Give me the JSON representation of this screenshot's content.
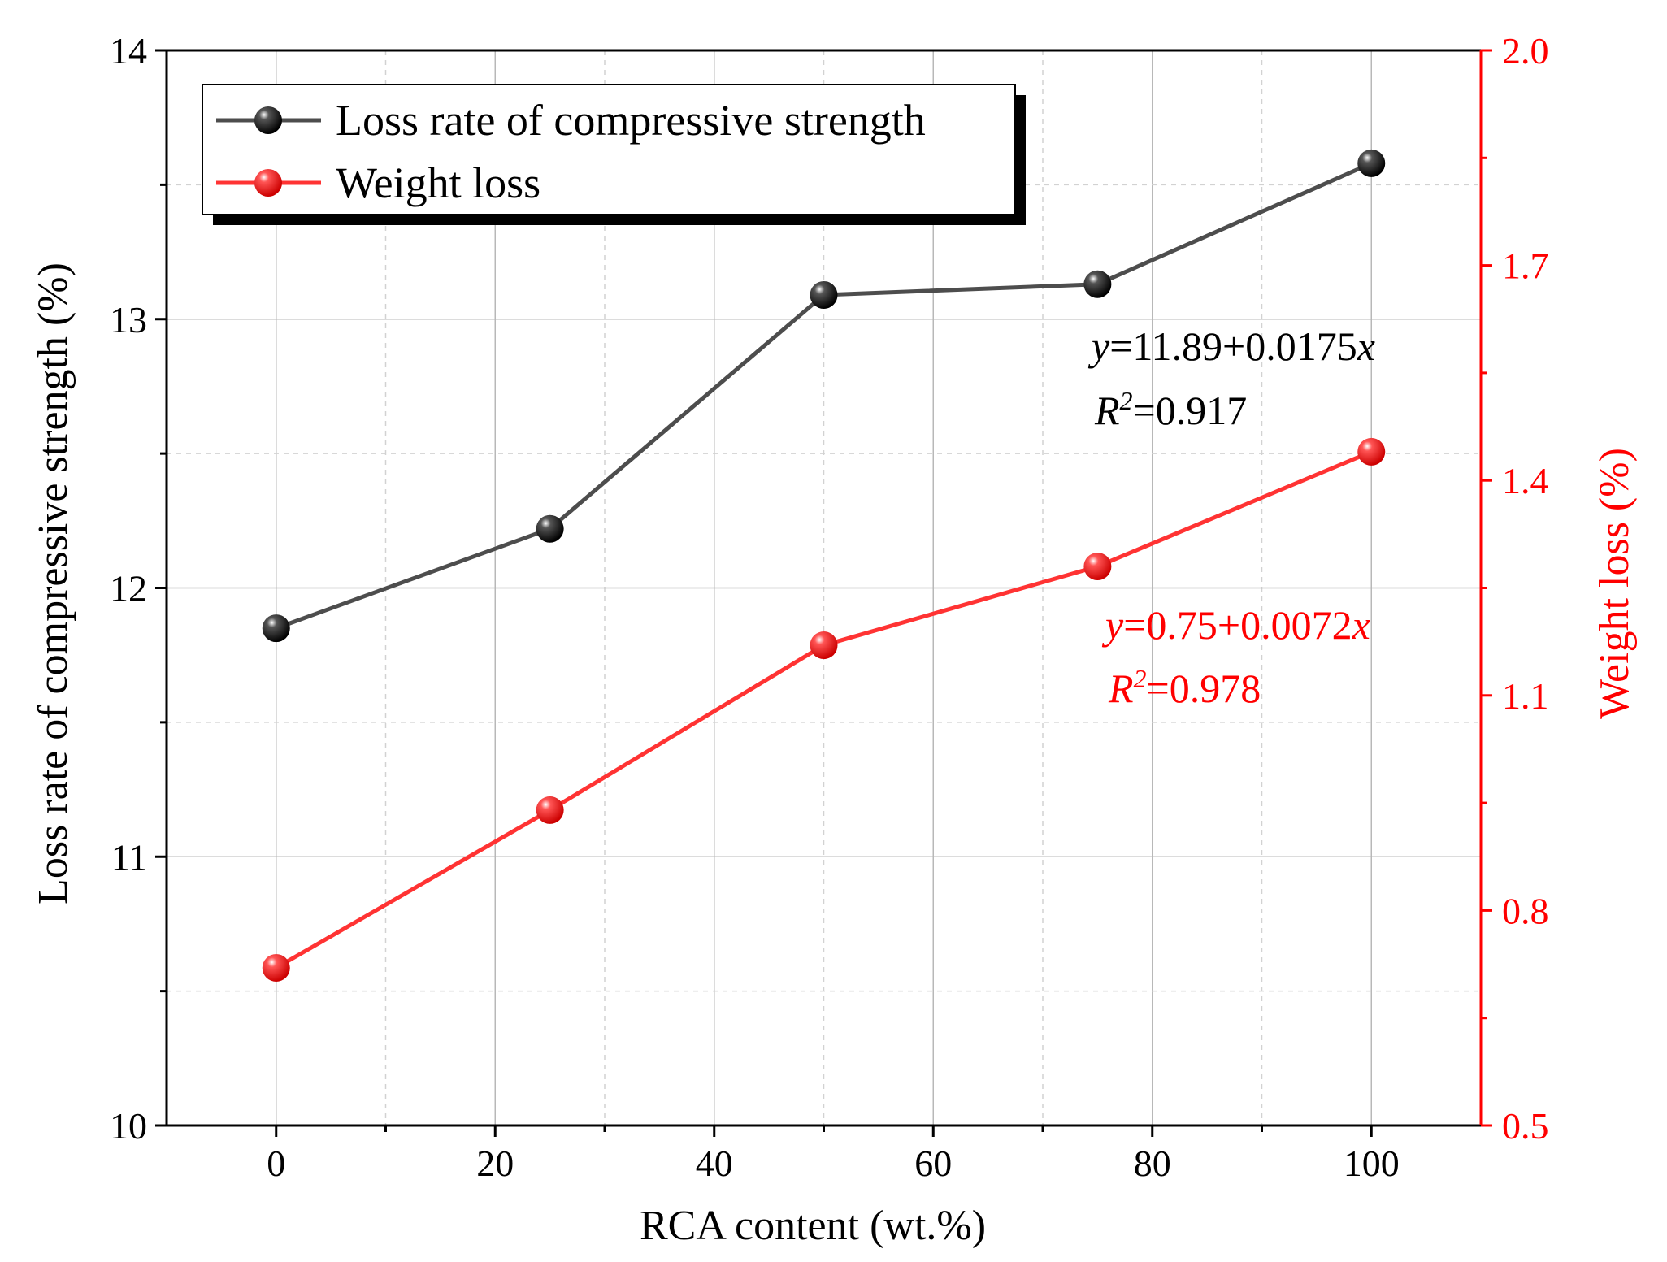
{
  "chart_data": {
    "type": "line",
    "x": [
      0,
      25,
      50,
      75,
      100
    ],
    "xlabel": "RCA content (wt.%)",
    "xlim": [
      -10,
      110
    ],
    "xticks": [
      0,
      20,
      40,
      60,
      80,
      100
    ],
    "xtick_labels": [
      "0",
      "20",
      "40",
      "60",
      "80",
      "100"
    ],
    "y_left": {
      "label": "Loss rate of compressive strength (%)",
      "lim": [
        10,
        14
      ],
      "ticks": [
        10,
        11,
        12,
        13,
        14
      ],
      "tick_labels": [
        "10",
        "11",
        "12",
        "13",
        "14"
      ],
      "color": "#000000"
    },
    "y_right": {
      "label": "Weight loss (%)",
      "lim": [
        0.5,
        2.0
      ],
      "ticks": [
        0.5,
        0.8,
        1.1,
        1.4,
        1.7,
        2.0
      ],
      "tick_labels": [
        "0.5",
        "0.8",
        "1.1",
        "1.4",
        "1.7",
        "2.0"
      ],
      "color": "#ff0000"
    },
    "series": [
      {
        "name": "Loss rate of compressive strength",
        "axis": "left",
        "color": "#4d4d4d",
        "marker_color": "#000000",
        "values": [
          11.85,
          12.22,
          13.09,
          13.13,
          13.58
        ]
      },
      {
        "name": "Weight loss",
        "axis": "right",
        "color": "#ff3333",
        "marker_color": "#ff0000",
        "values": [
          0.72,
          0.94,
          1.17,
          1.28,
          1.44
        ]
      }
    ],
    "annotations": [
      {
        "italic": "y",
        "rest": "=11.89+0.0175",
        "italic2": "x",
        "color": "#000000"
      },
      {
        "italic": "R",
        "sup": "2",
        "rest": "=0.917",
        "color": "#000000"
      },
      {
        "italic": "y",
        "rest": "=0.75+0.0072",
        "italic2": "x",
        "color": "#ff0000"
      },
      {
        "italic": "R",
        "sup": "2",
        "rest": "=0.978",
        "color": "#ff0000"
      }
    ],
    "grid": true,
    "legend_position": "top-left"
  }
}
